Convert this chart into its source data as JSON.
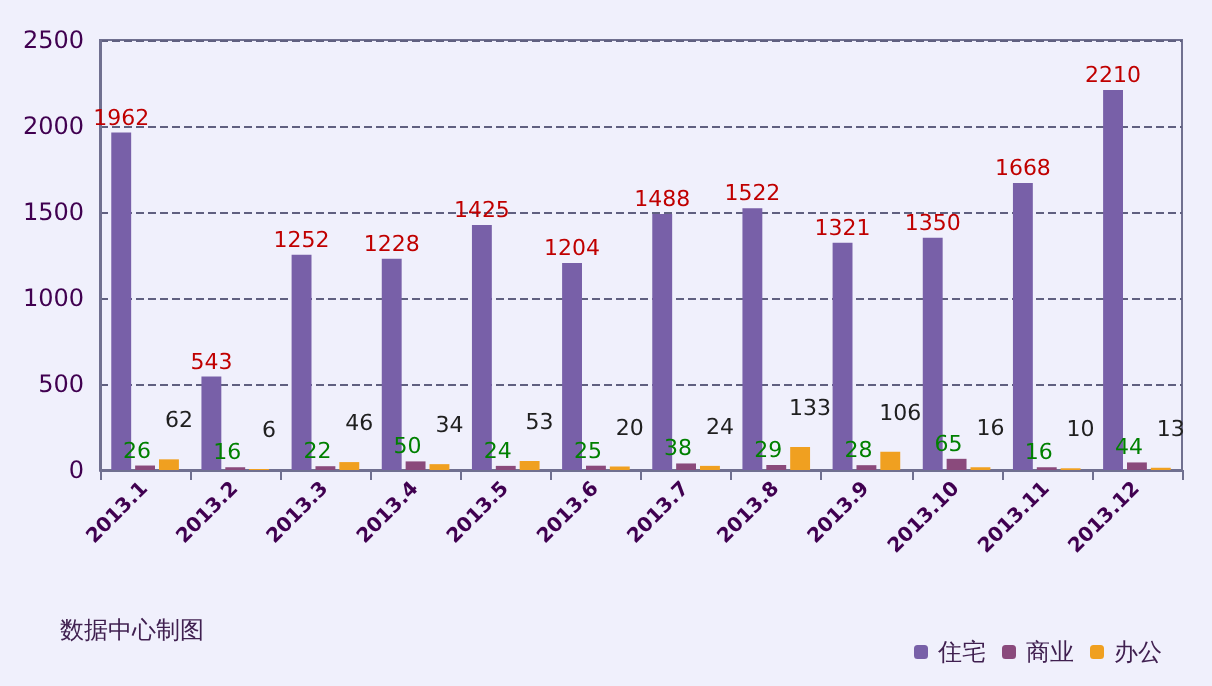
{
  "chart_data": {
    "type": "bar",
    "categories": [
      "2013.1",
      "2013.2",
      "2013.3",
      "2013.4",
      "2013.5",
      "2013.6",
      "2013.7",
      "2013.8",
      "2013.9",
      "2013.10",
      "2013.11",
      "2013.12"
    ],
    "series": [
      {
        "name": "住宅",
        "color": "#7860a8",
        "values": [
          1962,
          543,
          1252,
          1228,
          1425,
          1204,
          1488,
          1522,
          1321,
          1350,
          1668,
          2210
        ]
      },
      {
        "name": "商业",
        "color": "#8a4a7c",
        "values": [
          26,
          16,
          22,
          50,
          24,
          25,
          38,
          29,
          28,
          65,
          16,
          44
        ]
      },
      {
        "name": "办公",
        "color": "#f0a020",
        "values": [
          62,
          6,
          46,
          34,
          53,
          20,
          24,
          133,
          106,
          16,
          10,
          13
        ]
      }
    ],
    "ylim": [
      0,
      2500
    ],
    "yticks": [
      0,
      500,
      1000,
      1500,
      2000,
      2500
    ],
    "grid": "y",
    "legend": "bottom right",
    "data_labels": true,
    "annotations": [
      "数据中心制图"
    ]
  }
}
